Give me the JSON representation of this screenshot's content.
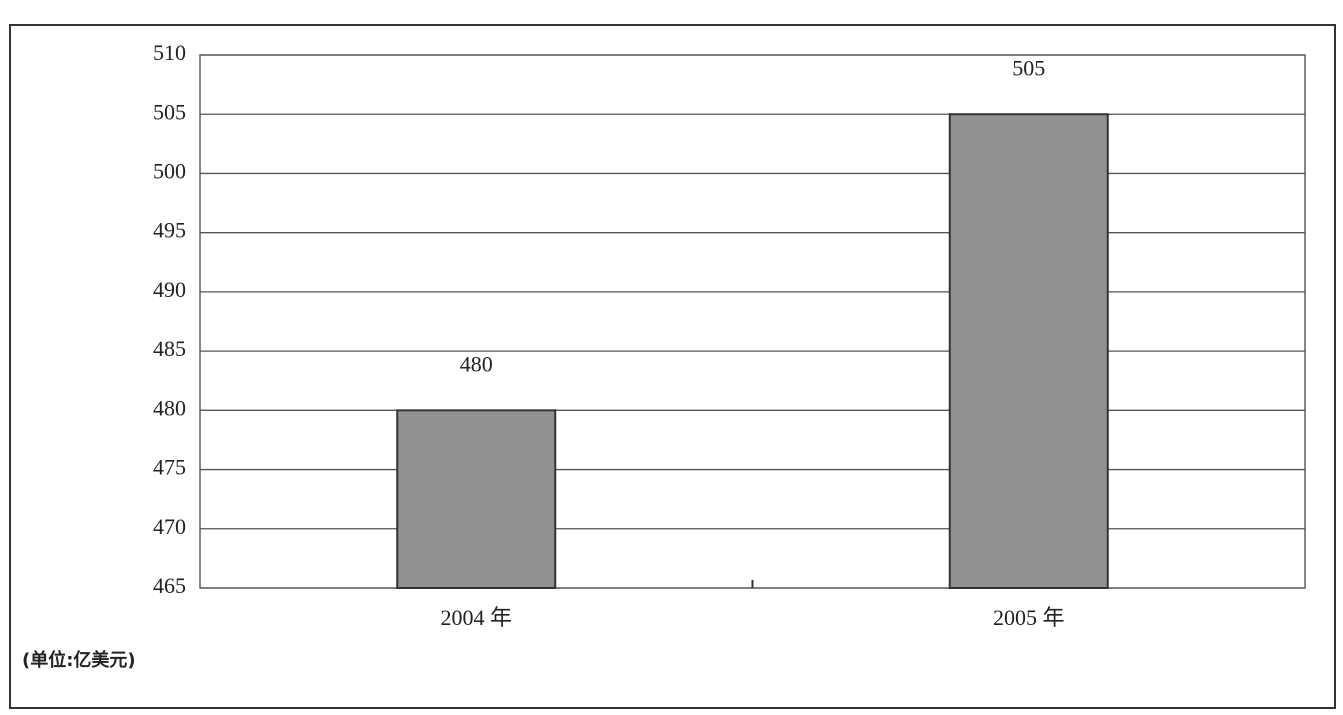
{
  "chart_data": {
    "type": "bar",
    "categories": [
      "2004 年",
      "2005 年"
    ],
    "values": [
      480,
      505
    ],
    "color": "#919191",
    "ylim": [
      465,
      510
    ],
    "yticks": [
      465,
      470,
      475,
      480,
      485,
      490,
      495,
      500,
      505,
      510
    ],
    "grid": true,
    "annotation": "(单位:亿美元)"
  }
}
